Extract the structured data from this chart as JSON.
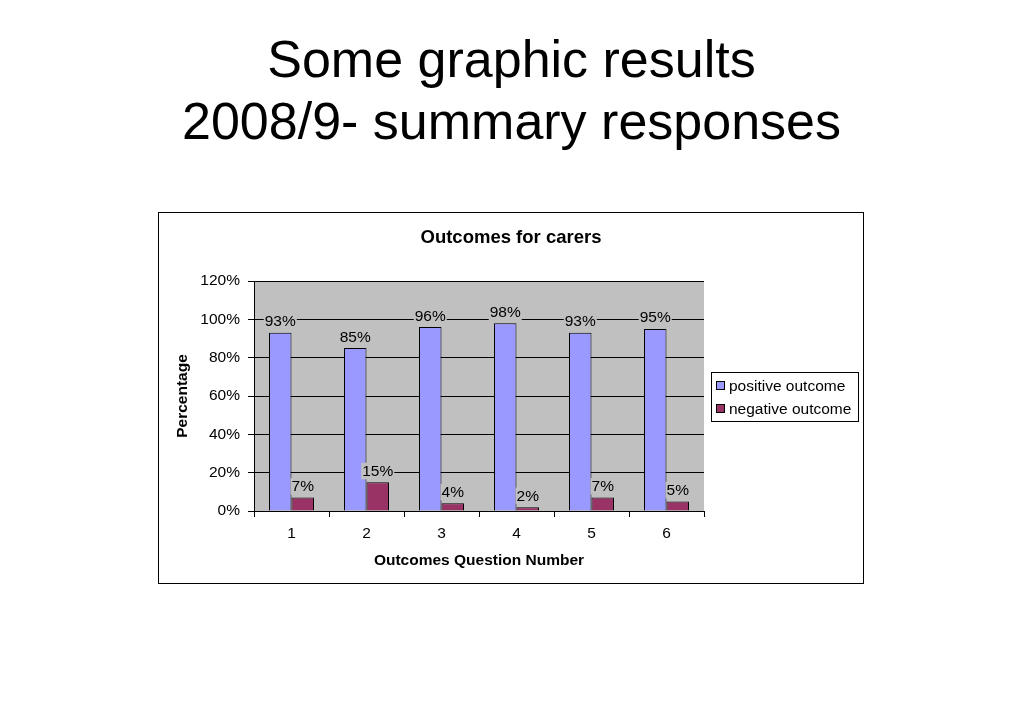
{
  "chart_data": {
    "type": "bar",
    "title": "Some graphic results\n2008/9- summary responses",
    "subtitle": "Outcomes for carers",
    "xlabel": "Outcomes Question Number",
    "ylabel": "Percentage",
    "categories": [
      "1",
      "2",
      "3",
      "4",
      "5",
      "6"
    ],
    "series": [
      {
        "name": "positive outcome",
        "color": "#9999ff",
        "values": [
          93,
          85,
          96,
          98,
          93,
          95
        ],
        "value_labels": [
          "93%",
          "85%",
          "96%",
          "98%",
          "93%",
          "95%"
        ]
      },
      {
        "name": "negative outcome",
        "color": "#993366",
        "values": [
          7,
          15,
          4,
          2,
          7,
          5
        ],
        "value_labels": [
          "7%",
          "15%",
          "4%",
          "2%",
          "7%",
          "5%"
        ]
      }
    ],
    "ylim": [
      0,
      120
    ],
    "yticks": [
      {
        "value": 0,
        "label": "0%"
      },
      {
        "value": 20,
        "label": "20%"
      },
      {
        "value": 40,
        "label": "40%"
      },
      {
        "value": 60,
        "label": "60%"
      },
      {
        "value": 80,
        "label": "80%"
      },
      {
        "value": 100,
        "label": "100%"
      },
      {
        "value": 120,
        "label": "120%"
      }
    ],
    "grid": "y",
    "legend": "right"
  }
}
